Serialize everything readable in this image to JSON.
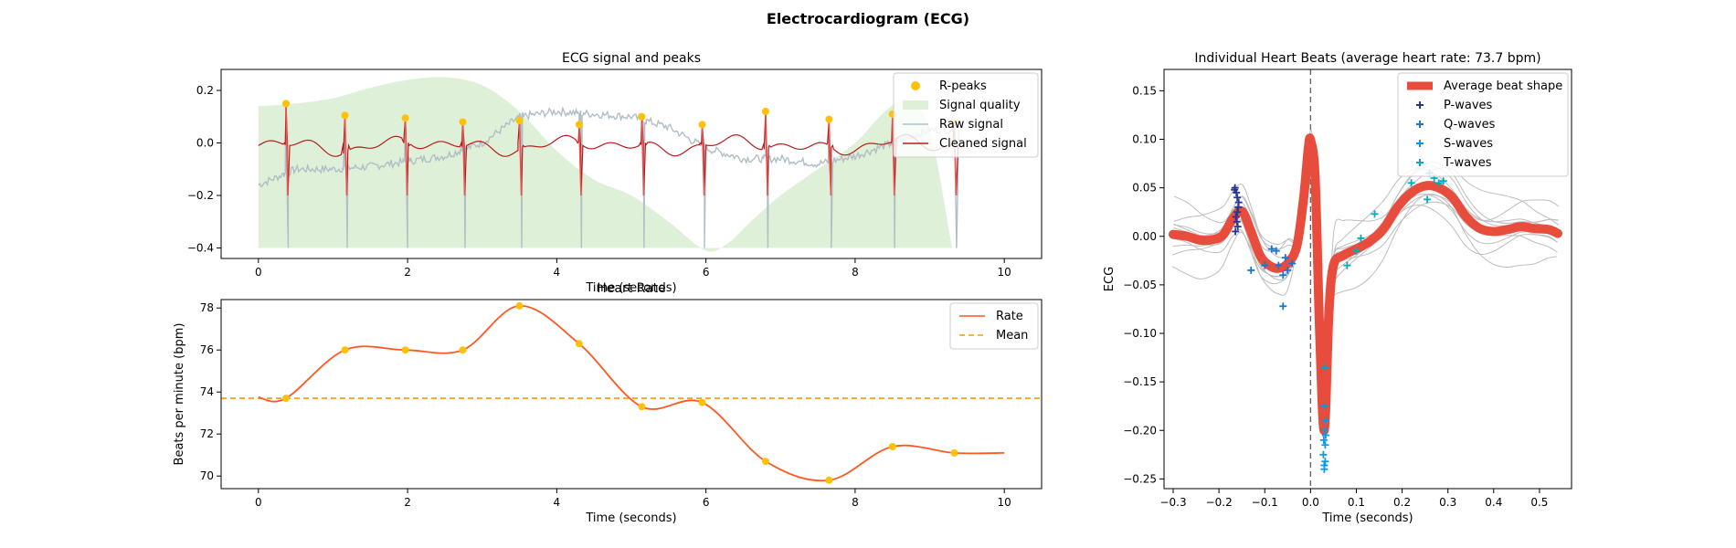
{
  "figure_title": "Electrocardiogram (ECG)",
  "chart_data": [
    {
      "id": "ecg",
      "type": "line",
      "title": "ECG signal and peaks",
      "xlabel": "Time (seconds)",
      "ylabel": "",
      "xlim": [
        -0.5,
        10.5
      ],
      "ylim": [
        -0.44,
        0.28
      ],
      "xticks": [
        0,
        2,
        4,
        6,
        8,
        10
      ],
      "xtick_labels": [
        "0",
        "2",
        "4",
        "6",
        "8",
        "10"
      ],
      "yticks": [
        -0.4,
        -0.2,
        0.0,
        0.2
      ],
      "ytick_labels": [
        "−0.4",
        "−0.2",
        "0.0",
        "0.2"
      ],
      "legend": [
        "R-peaks",
        "Signal quality",
        "Raw signal",
        "Cleaned signal"
      ],
      "legend_position": "top-right",
      "colors": {
        "peaks": "#FFC107",
        "quality": "#DFF0D8",
        "raw": "#B0BEC5",
        "clean": "#B71C1C",
        "clean_spike": "#EF5350"
      },
      "r_peaks": {
        "x": [
          0.37,
          1.16,
          1.97,
          2.74,
          3.5,
          4.3,
          5.14,
          5.95,
          6.8,
          7.65,
          8.5,
          9.33
        ],
        "y": [
          0.15,
          0.105,
          0.095,
          0.08,
          0.085,
          0.07,
          0.1,
          0.07,
          0.12,
          0.09,
          0.11,
          0.08
        ]
      },
      "signal_quality": {
        "x": [
          0,
          0.5,
          1,
          1.5,
          2,
          2.5,
          3,
          3.5,
          4,
          4.5,
          5,
          5.5,
          6,
          6.3,
          6.6,
          7,
          7.5,
          8,
          8.4,
          8.7,
          9,
          9.3
        ],
        "y": [
          0.14,
          0.15,
          0.17,
          0.21,
          0.24,
          0.25,
          0.22,
          0.12,
          -0.03,
          -0.14,
          -0.2,
          -0.3,
          -0.41,
          -0.38,
          -0.3,
          -0.2,
          -0.1,
          0.0,
          0.12,
          0.16,
          0.05,
          -0.4
        ],
        "baseline": -0.4
      },
      "raw_noise": {
        "x": [
          0,
          0.5,
          1,
          1.5,
          2,
          2.5,
          3,
          3.5,
          4,
          4.5,
          5,
          5.5,
          6,
          6.5,
          7,
          7.5,
          8,
          8.5,
          9
        ],
        "y": [
          -0.16,
          -0.1,
          -0.1,
          -0.09,
          -0.07,
          -0.05,
          0.0,
          0.1,
          0.12,
          0.11,
          0.1,
          0.06,
          -0.02,
          -0.06,
          -0.06,
          -0.08,
          -0.05,
          0.0,
          0.05
        ]
      },
      "raw_trough": -0.4,
      "clean_trough": -0.2
    },
    {
      "id": "rate",
      "type": "line",
      "title": "Heart Rate",
      "xlabel": "Time (seconds)",
      "ylabel": "Beats per minute (bpm)",
      "xlim": [
        -0.5,
        10.5
      ],
      "ylim": [
        69.4,
        78.4
      ],
      "xticks": [
        0,
        2,
        4,
        6,
        8,
        10
      ],
      "xtick_labels": [
        "0",
        "2",
        "4",
        "6",
        "8",
        "10"
      ],
      "yticks": [
        70,
        72,
        74,
        76,
        78
      ],
      "ytick_labels": [
        "70",
        "72",
        "74",
        "76",
        "78"
      ],
      "legend": [
        "Rate",
        "Mean"
      ],
      "legend_position": "top-right",
      "colors": {
        "rate": "#FF5722",
        "mean": "#FF9800",
        "points": "#FFC107"
      },
      "mean": 73.7,
      "line": {
        "x": [
          0,
          0.37,
          1.16,
          1.97,
          2.74,
          3.5,
          4.3,
          5.14,
          5.95,
          6.8,
          7.65,
          8.5,
          9.33,
          10
        ],
        "y": [
          73.75,
          73.7,
          76.0,
          76.0,
          76.0,
          78.1,
          76.3,
          73.3,
          73.5,
          70.7,
          69.8,
          71.4,
          71.1,
          71.1
        ]
      },
      "points": {
        "x": [
          0.37,
          1.16,
          1.97,
          2.74,
          3.5,
          4.3,
          5.14,
          5.95,
          6.8,
          7.65,
          8.5,
          9.33
        ],
        "y": [
          73.7,
          76.0,
          76.0,
          76.0,
          78.1,
          76.3,
          73.3,
          73.5,
          70.7,
          69.8,
          71.4,
          71.1
        ]
      }
    },
    {
      "id": "beats",
      "type": "line",
      "title": "Individual Heart Beats (average heart rate: 73.7 bpm)",
      "xlabel": "Time (seconds)",
      "ylabel": "ECG",
      "xlim": [
        -0.32,
        0.57
      ],
      "ylim": [
        -0.26,
        0.172
      ],
      "xticks": [
        -0.3,
        -0.2,
        -0.1,
        0.0,
        0.1,
        0.2,
        0.3,
        0.4,
        0.5
      ],
      "xtick_labels": [
        "−0.3",
        "−0.2",
        "−0.1",
        "0.0",
        "0.1",
        "0.2",
        "0.3",
        "0.4",
        "0.5"
      ],
      "yticks": [
        -0.25,
        -0.2,
        -0.15,
        -0.1,
        -0.05,
        0.0,
        0.05,
        0.1,
        0.15
      ],
      "ytick_labels": [
        "−0.25",
        "−0.20",
        "−0.15",
        "−0.10",
        "−0.05",
        "0.00",
        "0.05",
        "0.10",
        "0.15"
      ],
      "legend": [
        "Average beat shape",
        "P-waves",
        "Q-waves",
        "S-waves",
        "T-waves"
      ],
      "legend_position": "top-right",
      "colors": {
        "average": "#E74C3C",
        "p": "#283593",
        "q": "#1976D2",
        "s": "#039BE5",
        "t": "#00ACC1",
        "beats": "#BDBDBD"
      },
      "average_beat": {
        "x": [
          -0.3,
          -0.27,
          -0.24,
          -0.21,
          -0.19,
          -0.17,
          -0.15,
          -0.13,
          -0.11,
          -0.09,
          -0.07,
          -0.05,
          -0.03,
          -0.015,
          -0.005,
          0.0,
          0.01,
          0.02,
          0.03,
          0.04,
          0.05,
          0.07,
          0.1,
          0.13,
          0.16,
          0.19,
          0.22,
          0.25,
          0.28,
          0.31,
          0.34,
          0.37,
          0.4,
          0.43,
          0.46,
          0.49,
          0.52,
          0.54
        ],
        "y": [
          0.002,
          0.0,
          -0.004,
          -0.003,
          0.002,
          0.018,
          0.026,
          0.005,
          -0.02,
          -0.03,
          -0.033,
          -0.028,
          -0.01,
          0.04,
          0.09,
          0.099,
          0.06,
          -0.1,
          -0.2,
          -0.08,
          -0.03,
          -0.02,
          -0.013,
          -0.005,
          0.008,
          0.03,
          0.045,
          0.052,
          0.05,
          0.04,
          0.02,
          0.008,
          0.005,
          0.007,
          0.01,
          0.008,
          0.007,
          0.003
        ]
      },
      "beat_spread": [
        0.0,
        0.04,
        -0.03,
        0.02,
        -0.02,
        0.03,
        -0.04,
        0.01,
        -0.015,
        0.025,
        -0.01
      ],
      "p_waves": {
        "x": [
          -0.165,
          -0.162,
          -0.16,
          -0.158,
          -0.163,
          -0.161,
          -0.159,
          -0.164,
          -0.16,
          -0.157,
          -0.166
        ],
        "y": [
          0.05,
          0.045,
          0.04,
          0.03,
          0.02,
          0.015,
          0.01,
          0.005,
          0.025,
          0.035,
          0.048
        ]
      },
      "q_waves": {
        "x": [
          -0.13,
          -0.1,
          -0.085,
          -0.075,
          -0.06,
          -0.05,
          -0.04,
          -0.06,
          -0.07,
          -0.055
        ],
        "y": [
          -0.035,
          -0.03,
          -0.013,
          -0.015,
          -0.04,
          -0.035,
          -0.028,
          -0.072,
          -0.03,
          -0.022
        ]
      },
      "s_waves": {
        "x": [
          0.03,
          0.032,
          0.029,
          0.031,
          0.033,
          0.03,
          0.032,
          0.028,
          0.031,
          0.033,
          0.03
        ],
        "y": [
          -0.236,
          -0.232,
          -0.21,
          -0.2,
          -0.19,
          -0.175,
          -0.215,
          -0.225,
          -0.135,
          -0.205,
          -0.24
        ]
      },
      "t_waves": {
        "x": [
          0.11,
          0.14,
          0.22,
          0.255,
          0.27,
          0.28,
          0.29,
          0.26,
          0.08,
          0.1
        ],
        "y": [
          -0.002,
          0.023,
          0.055,
          0.038,
          0.06,
          0.055,
          0.057,
          0.065,
          -0.03,
          -0.015
        ]
      }
    }
  ]
}
